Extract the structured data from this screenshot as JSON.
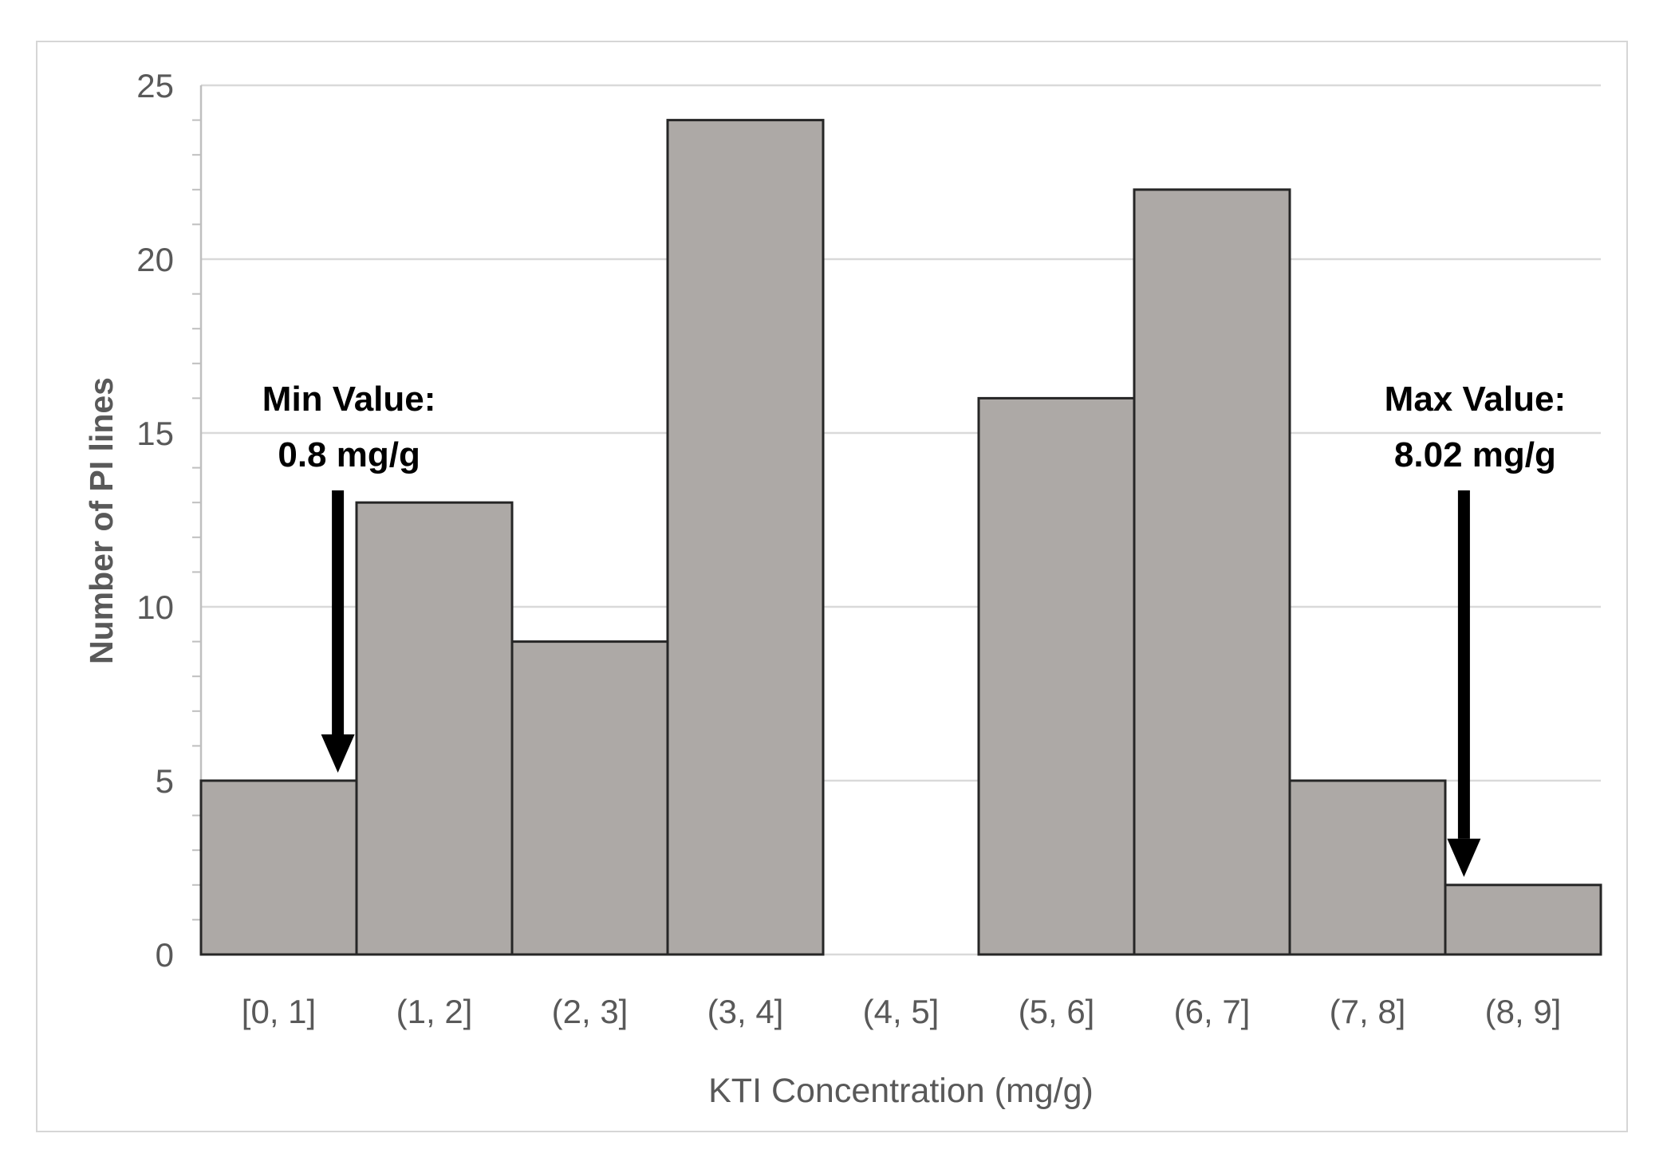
{
  "chart_data": {
    "type": "bar",
    "subtype": "histogram",
    "title": "",
    "categories": [
      "[0,  1]",
      "(1,  2]",
      "(2,  3]",
      "(3,  4]",
      "(4,  5]",
      "(5,  6]",
      "(6,  7]",
      "(7,  8]",
      "(8,  9]"
    ],
    "values": [
      5,
      13,
      9,
      24,
      0,
      16,
      22,
      5,
      2
    ],
    "xlabel": "KTI Concentration (mg/g)",
    "ylabel": "Number of PI lines",
    "ylim": [
      0,
      25
    ],
    "yticks": [
      0,
      5,
      10,
      15,
      20,
      25
    ],
    "minor_tick_step": 1,
    "grid": true,
    "legend": "none",
    "annotations": [
      {
        "line1": "Min Value:",
        "line2": "0.8 mg/g",
        "points_to_x": 0.88,
        "target_bin_index": 0,
        "target_bin_value": 5
      },
      {
        "line1": "Max Value:",
        "line2": "8.02 mg/g",
        "points_to_x": 8.12,
        "target_bin_index": 8,
        "target_bin_value": 2
      }
    ],
    "colors": {
      "bar_fill": "#ada9a6",
      "bar_stroke": "#262626",
      "gridline": "#d9d9d9",
      "axis_line": "#bfbfbf",
      "tick_text": "#595959",
      "annotation_text": "#000000",
      "arrow": "#000000",
      "frame_border": "#d6d6d6"
    }
  }
}
